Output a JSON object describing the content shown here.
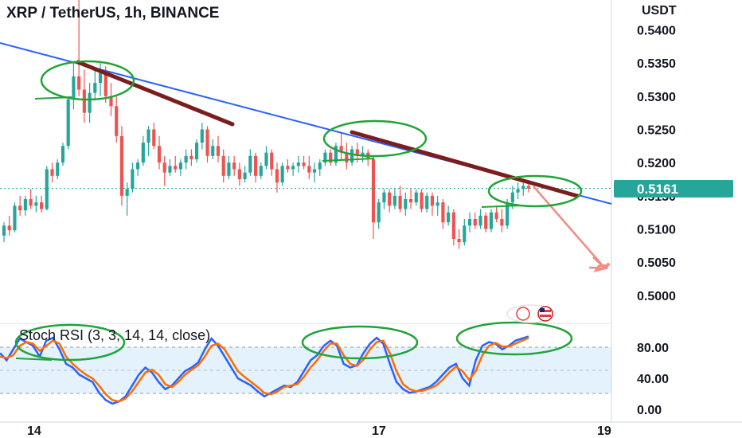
{
  "header": {
    "title": "XRP / TetherUS, 1h, BINANCE"
  },
  "price_axis": {
    "unit": "USDT",
    "ticks": [
      "0.5400",
      "0.5350",
      "0.5300",
      "0.5250",
      "0.5200",
      "0.5150",
      "0.5100",
      "0.5050",
      "0.5000"
    ],
    "last_price": "0.5161"
  },
  "indicator": {
    "label": "Stoch RSI (3, 3, 14, 14, close)",
    "ticks": [
      "80.00",
      "40.00",
      "0.00"
    ]
  },
  "time_axis": {
    "labels": [
      "14",
      "17",
      "19"
    ]
  },
  "colors": {
    "up": "#26a69a",
    "down": "#ef5350",
    "trendline": "#2962ff",
    "brown_line": "#7b1d1d",
    "green_annotation": "#22a33a",
    "arrow": "#f28b82",
    "k_line": "#2962ff",
    "d_line": "#ff6d00",
    "band_fill": "#e3f2fd",
    "price_tag": "#26a69a"
  },
  "chart_data": [
    {
      "type": "candlestick",
      "title": "XRP / TetherUS, 1h, BINANCE",
      "ylabel": "USDT",
      "ylim": [
        0.4965,
        0.5445
      ],
      "x_labels": [
        "14",
        "17",
        "19"
      ],
      "last_price": 0.5161,
      "candles": [
        [
          0.509,
          0.511,
          0.508,
          0.5105
        ],
        [
          0.5105,
          0.512,
          0.509,
          0.5098
        ],
        [
          0.5098,
          0.514,
          0.5095,
          0.5135
        ],
        [
          0.5135,
          0.515,
          0.512,
          0.5128
        ],
        [
          0.5128,
          0.515,
          0.512,
          0.5145
        ],
        [
          0.5145,
          0.516,
          0.513,
          0.5135
        ],
        [
          0.5135,
          0.515,
          0.5125,
          0.514
        ],
        [
          0.514,
          0.515,
          0.5125,
          0.513
        ],
        [
          0.513,
          0.5195,
          0.5128,
          0.519
        ],
        [
          0.519,
          0.52,
          0.517,
          0.518
        ],
        [
          0.518,
          0.5205,
          0.5175,
          0.52
        ],
        [
          0.52,
          0.523,
          0.5195,
          0.5225
        ],
        [
          0.5225,
          0.53,
          0.522,
          0.5295
        ],
        [
          0.5295,
          0.535,
          0.528,
          0.533
        ],
        [
          0.533,
          0.545,
          0.53,
          0.531
        ],
        [
          0.531,
          0.534,
          0.526,
          0.5275
        ],
        [
          0.5275,
          0.532,
          0.526,
          0.5305
        ],
        [
          0.5305,
          0.534,
          0.5295,
          0.532
        ],
        [
          0.532,
          0.535,
          0.53,
          0.5335
        ],
        [
          0.5335,
          0.5345,
          0.529,
          0.53
        ],
        [
          0.53,
          0.532,
          0.527,
          0.5285
        ],
        [
          0.5285,
          0.53,
          0.523,
          0.524
        ],
        [
          0.524,
          0.5255,
          0.5135,
          0.515
        ],
        [
          0.515,
          0.517,
          0.512,
          0.516
        ],
        [
          0.516,
          0.52,
          0.5155,
          0.519
        ],
        [
          0.519,
          0.5205,
          0.518,
          0.52
        ],
        [
          0.52,
          0.524,
          0.5195,
          0.523
        ],
        [
          0.523,
          0.5255,
          0.521,
          0.525
        ],
        [
          0.525,
          0.526,
          0.522,
          0.5225
        ],
        [
          0.5225,
          0.524,
          0.519,
          0.52
        ],
        [
          0.52,
          0.521,
          0.5165,
          0.5185
        ],
        [
          0.5185,
          0.5205,
          0.518,
          0.5195
        ],
        [
          0.5195,
          0.521,
          0.5185,
          0.519
        ],
        [
          0.519,
          0.5205,
          0.518,
          0.52
        ],
        [
          0.52,
          0.522,
          0.519,
          0.521
        ],
        [
          0.521,
          0.522,
          0.5195,
          0.5205
        ],
        [
          0.5205,
          0.5235,
          0.52,
          0.523
        ],
        [
          0.523,
          0.526,
          0.522,
          0.525
        ],
        [
          0.525,
          0.5255,
          0.52,
          0.521
        ],
        [
          0.521,
          0.5235,
          0.5205,
          0.5225
        ],
        [
          0.5225,
          0.524,
          0.52,
          0.521
        ],
        [
          0.521,
          0.522,
          0.517,
          0.518
        ],
        [
          0.518,
          0.521,
          0.5175,
          0.52
        ],
        [
          0.52,
          0.521,
          0.518,
          0.519
        ],
        [
          0.519,
          0.52,
          0.5165,
          0.5175
        ],
        [
          0.5175,
          0.5195,
          0.517,
          0.5185
        ],
        [
          0.5185,
          0.522,
          0.518,
          0.521
        ],
        [
          0.521,
          0.5215,
          0.517,
          0.518
        ],
        [
          0.518,
          0.52,
          0.5175,
          0.5195
        ],
        [
          0.5195,
          0.5225,
          0.519,
          0.5215
        ],
        [
          0.5215,
          0.522,
          0.518,
          0.519
        ],
        [
          0.519,
          0.52,
          0.5155,
          0.517
        ],
        [
          0.517,
          0.52,
          0.5165,
          0.5195
        ],
        [
          0.5195,
          0.5205,
          0.5185,
          0.519
        ],
        [
          0.519,
          0.52,
          0.518,
          0.5195
        ],
        [
          0.5195,
          0.521,
          0.5185,
          0.52
        ],
        [
          0.52,
          0.521,
          0.519,
          0.5195
        ],
        [
          0.5195,
          0.521,
          0.5175,
          0.5185
        ],
        [
          0.5185,
          0.52,
          0.517,
          0.519
        ],
        [
          0.519,
          0.5205,
          0.518,
          0.52
        ],
        [
          0.52,
          0.522,
          0.5195,
          0.5215
        ],
        [
          0.5215,
          0.522,
          0.5195,
          0.52
        ],
        [
          0.52,
          0.523,
          0.5195,
          0.5225
        ],
        [
          0.5225,
          0.5245,
          0.5205,
          0.5215
        ],
        [
          0.5215,
          0.523,
          0.519,
          0.52
        ],
        [
          0.52,
          0.5225,
          0.5195,
          0.522
        ],
        [
          0.522,
          0.523,
          0.52,
          0.521
        ],
        [
          0.521,
          0.5225,
          0.52,
          0.5215
        ],
        [
          0.5215,
          0.522,
          0.5195,
          0.5205
        ],
        [
          0.5205,
          0.521,
          0.5085,
          0.511
        ],
        [
          0.511,
          0.5145,
          0.51,
          0.514
        ],
        [
          0.514,
          0.516,
          0.513,
          0.5155
        ],
        [
          0.5155,
          0.516,
          0.5125,
          0.5135
        ],
        [
          0.5135,
          0.516,
          0.513,
          0.515
        ],
        [
          0.515,
          0.5165,
          0.5125,
          0.513
        ],
        [
          0.513,
          0.5155,
          0.512,
          0.5145
        ],
        [
          0.5145,
          0.516,
          0.513,
          0.514
        ],
        [
          0.514,
          0.516,
          0.5135,
          0.5155
        ],
        [
          0.5155,
          0.516,
          0.5125,
          0.513
        ],
        [
          0.513,
          0.5155,
          0.5125,
          0.515
        ],
        [
          0.515,
          0.5155,
          0.512,
          0.5135
        ],
        [
          0.5135,
          0.515,
          0.512,
          0.514
        ],
        [
          0.514,
          0.5145,
          0.51,
          0.511
        ],
        [
          0.511,
          0.5135,
          0.5105,
          0.5125
        ],
        [
          0.5125,
          0.513,
          0.5075,
          0.5085
        ],
        [
          0.5085,
          0.51,
          0.507,
          0.508
        ],
        [
          0.508,
          0.5115,
          0.5075,
          0.5105
        ],
        [
          0.5105,
          0.5125,
          0.5095,
          0.5115
        ],
        [
          0.5115,
          0.5125,
          0.51,
          0.5105
        ],
        [
          0.5105,
          0.513,
          0.51,
          0.512
        ],
        [
          0.512,
          0.5125,
          0.5095,
          0.51
        ],
        [
          0.51,
          0.513,
          0.5095,
          0.5125
        ],
        [
          0.5125,
          0.5135,
          0.511,
          0.5115
        ],
        [
          0.5115,
          0.513,
          0.5095,
          0.5105
        ],
        [
          0.5105,
          0.5145,
          0.51,
          0.514
        ],
        [
          0.514,
          0.5165,
          0.513,
          0.5155
        ],
        [
          0.5155,
          0.517,
          0.5145,
          0.516
        ],
        [
          0.516,
          0.517,
          0.515,
          0.5165
        ],
        [
          0.5165,
          0.5168,
          0.5155,
          0.5161
        ]
      ]
    },
    {
      "type": "line",
      "title": "Stoch RSI (3, 3, 14, 14, close)",
      "ylim": [
        -5,
        105
      ],
      "bands": [
        20,
        80
      ],
      "series": [
        {
          "name": "K",
          "values": [
            75,
            65,
            80,
            95,
            90,
            85,
            70,
            92,
            96,
            80,
            60,
            55,
            45,
            40,
            35,
            20,
            10,
            5,
            8,
            15,
            30,
            45,
            55,
            48,
            35,
            25,
            30,
            40,
            50,
            55,
            62,
            80,
            95,
            85,
            70,
            55,
            40,
            35,
            30,
            22,
            15,
            20,
            25,
            30,
            28,
            35,
            50,
            65,
            72,
            85,
            92,
            85,
            60,
            55,
            58,
            75,
            88,
            96,
            88,
            60,
            35,
            25,
            20,
            22,
            25,
            28,
            35,
            45,
            55,
            60,
            40,
            30,
            65,
            85,
            90,
            88,
            80,
            85,
            92,
            95,
            98
          ]
        },
        {
          "name": "D",
          "values": [
            70,
            68,
            72,
            85,
            90,
            88,
            78,
            85,
            92,
            88,
            70,
            60,
            52,
            45,
            40,
            30,
            18,
            10,
            8,
            12,
            22,
            35,
            48,
            52,
            45,
            32,
            28,
            35,
            45,
            52,
            58,
            70,
            85,
            88,
            80,
            65,
            50,
            42,
            35,
            28,
            20,
            18,
            22,
            28,
            30,
            32,
            42,
            55,
            65,
            78,
            88,
            88,
            72,
            60,
            57,
            66,
            80,
            90,
            92,
            75,
            50,
            32,
            25,
            22,
            23,
            26,
            30,
            38,
            48,
            56,
            50,
            38,
            50,
            72,
            85,
            89,
            84,
            84,
            88,
            92,
            96
          ]
        }
      ]
    }
  ]
}
